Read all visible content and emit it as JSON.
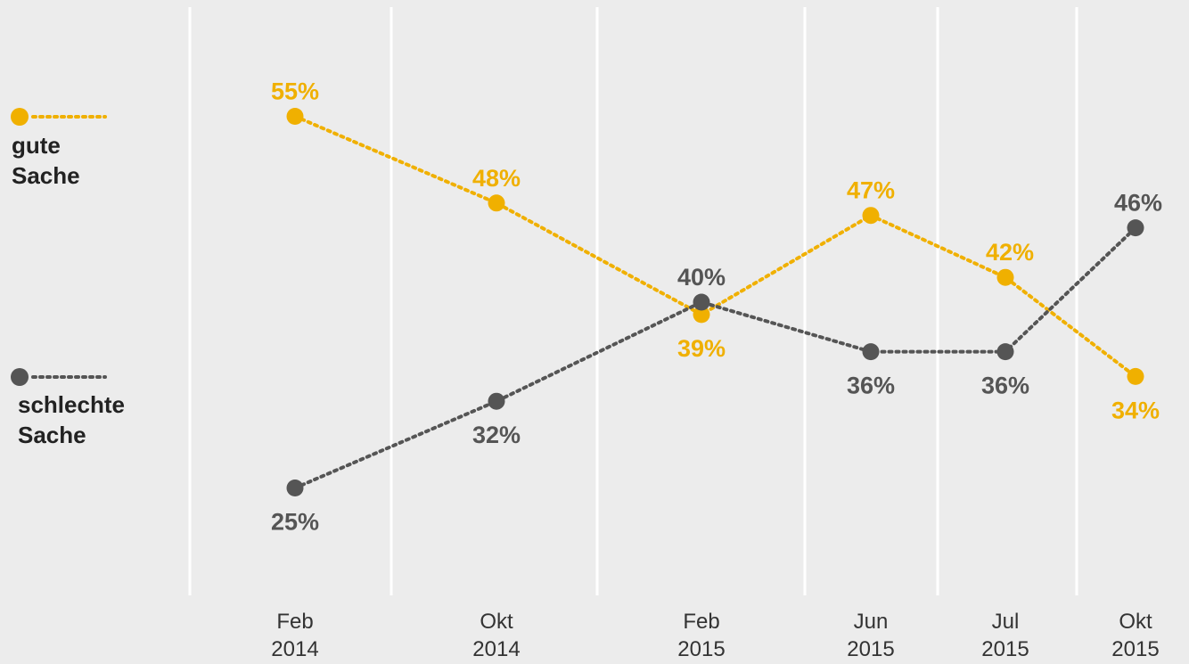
{
  "colors": {
    "gute": "#f0b000",
    "schlechte": "#555555",
    "background": "#ececec",
    "grid": "#ffffff"
  },
  "legend": {
    "gute": {
      "line1": "gute",
      "line2": "Sache"
    },
    "schlechte": {
      "line1": "schlechte",
      "line2": "Sache"
    }
  },
  "chart_data": {
    "type": "line",
    "categories": [
      {
        "month": "Feb",
        "year": "2014"
      },
      {
        "month": "Okt",
        "year": "2014"
      },
      {
        "month": "Feb",
        "year": "2015"
      },
      {
        "month": "Jun",
        "year": "2015"
      },
      {
        "month": "Jul",
        "year": "2015"
      },
      {
        "month": "Okt",
        "year": "2015"
      }
    ],
    "series": [
      {
        "name": "gute Sache",
        "key": "gute",
        "values": [
          55,
          48,
          39,
          47,
          42,
          34
        ],
        "labels": [
          "55%",
          "48%",
          "39%",
          "47%",
          "42%",
          "34%"
        ]
      },
      {
        "name": "schlechte Sache",
        "key": "schlechte",
        "values": [
          25,
          32,
          40,
          36,
          36,
          46
        ],
        "labels": [
          "25%",
          "32%",
          "40%",
          "36%",
          "36%",
          "46%"
        ]
      }
    ],
    "unit": "%",
    "grid": true,
    "legend_position": "left"
  }
}
